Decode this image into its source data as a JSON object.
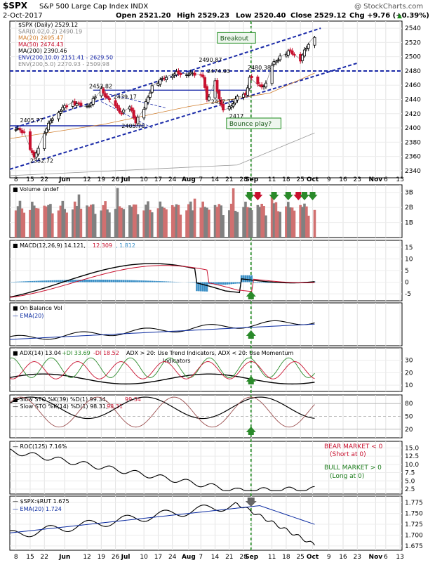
{
  "header": {
    "symbol": "$SPX",
    "name": "S&P 500 Large Cap Index INDX",
    "date": "2-Oct-2017",
    "open": "Open 2521.20",
    "high": "High 2529.23",
    "low": "Low 2520.40",
    "close": "Close 2529.12",
    "chg": "Chg +9.76 (+0.39%)",
    "chg_arrow": "▲",
    "watermark": "@ StockCharts.com"
  },
  "colors": {
    "up": "#000000",
    "down": "#c8102e",
    "ma20": "#d07e2e",
    "ma50": "#c8102e",
    "ma200": "#000000",
    "macd_hist": "#3a8fc6",
    "ema": "#0a2aa0",
    "env_blue": "#1a2aa8",
    "sig_green": "#2a8a2a",
    "sig_red": "#c8102e",
    "vol_up": "#808080",
    "vol_down": "#d07070"
  },
  "chart_data": [
    {
      "type": "line",
      "title": "$SPX (Daily) 2529.12",
      "legend": [
        {
          "label": "$SPX (Daily) 2529.12",
          "color": "#000000"
        },
        {
          "label": "SAR(0.02,0.2) 2490.19",
          "color": "#888888"
        },
        {
          "label": "MA(20) 2495.47",
          "color": "#d07e2e"
        },
        {
          "label": "MA(50) 2474.43",
          "color": "#c8102e"
        },
        {
          "label": "MA(200) 2390.46",
          "color": "#000000"
        },
        {
          "label": "ENV(200,10.0) 2151.41 - 2629.50",
          "color": "#1a2aa8"
        },
        {
          "label": "ENV(200,5.0) 2270.93 - 2509.98",
          "color": "#888888"
        }
      ],
      "ylim": [
        2330,
        2550
      ],
      "yticks": [
        "2540",
        "2520",
        "2500",
        "2480",
        "2460",
        "2440",
        "2420",
        "2400",
        "2380",
        "2360",
        "2340"
      ],
      "xticks": [
        "8",
        "15",
        "22",
        "Jun",
        "12",
        "19",
        "26",
        "Jul",
        "10",
        "17",
        "24",
        "Aug",
        "7",
        "14",
        "21",
        "28",
        "Sep",
        "11",
        "18",
        "25",
        "Oct",
        "9",
        "16",
        "23",
        "Nov",
        "6",
        "13"
      ],
      "price_labels": [
        "2490.87",
        "2474.93",
        "2453.82",
        "2439.17",
        "2405.77",
        "2405.70",
        "2352.72",
        "2427.75",
        "2417",
        "2480.38"
      ],
      "annotations": [
        "Breakout",
        "Bounce play?"
      ],
      "levels": [
        2480,
        2453,
        2403
      ],
      "series": [
        {
          "name": "$SPX",
          "x": [
            "May 8",
            "May 12",
            "May 17",
            "May 18",
            "May 22",
            "May 26",
            "Jun 1",
            "Jun 5",
            "Jun 9",
            "Jun 12",
            "Jun 19",
            "Jun 23",
            "Jun 29",
            "Jul 3",
            "Jul 6",
            "Jul 10",
            "Jul 14",
            "Jul 21",
            "Jul 26",
            "Aug 1",
            "Aug 4",
            "Aug 8",
            "Aug 10",
            "Aug 14",
            "Aug 17",
            "Aug 18",
            "Aug 21",
            "Aug 25",
            "Aug 29",
            "Aug 31",
            "Sep 5",
            "Sep 8",
            "Sep 11",
            "Sep 15",
            "Sep 20",
            "Sep 25",
            "Sep 29",
            "Oct 2"
          ],
          "values": [
            2399,
            2394,
            2357,
            2366,
            2394,
            2415,
            2430,
            2436,
            2432,
            2429,
            2453,
            2438,
            2421,
            2429,
            2409,
            2427,
            2459,
            2472,
            2477,
            2476,
            2476,
            2474,
            2438,
            2465,
            2430,
            2425,
            2428,
            2443,
            2446,
            2471,
            2458,
            2461,
            2488,
            2500,
            2508,
            2496,
            2519,
            2529
          ]
        }
      ]
    },
    {
      "type": "bar",
      "title": "Volume undef",
      "yticks": [
        "3B",
        "2B",
        "1B"
      ],
      "ylim": [
        0,
        3.5
      ]
    },
    {
      "type": "line",
      "title": "MACD(12,26,9) 14.121, 12.309, 1.812",
      "legend": [
        "MACD(12,26,9) 14.121",
        "12.309",
        "1.812"
      ],
      "yticks": [
        "15",
        "10",
        "5",
        "0",
        "-5"
      ],
      "ylim": [
        -8,
        18
      ]
    },
    {
      "type": "line",
      "title": "On Balance Vol",
      "legend": [
        "On Balance Vol",
        "EMA(20)"
      ]
    },
    {
      "type": "line",
      "title": "ADX(14) 13.04 +DI 33.69 -DI 18.52",
      "legend": [
        "ADX(14) 13.04",
        "+DI 33.69",
        "-DI 18.52"
      ],
      "note": "ADX > 20: Use Trend Indicators, ADX < 20: Use Momentum Indicators",
      "yticks": [
        "30",
        "20",
        "10"
      ],
      "ylim": [
        5,
        40
      ]
    },
    {
      "type": "line",
      "title": "Slow STO %K(39) %D(1) 99.34, 99.34",
      "legend": [
        "Slow STO %K(39) %D(1) 99.34, 99.34",
        "Slow STO %K(14) %D(1) 98.31, 98.31"
      ],
      "yticks": [
        "80",
        "50",
        "20"
      ],
      "ylim": [
        0,
        100
      ]
    },
    {
      "type": "line",
      "title": "ROC(125) 7.16%",
      "notes": [
        "BEAR MARKET < 0",
        "(Short at 0)",
        "BULL MARKET > 0",
        "(Long at 0)"
      ],
      "yticks": [
        "15.0",
        "12.5",
        "10.0",
        "7.5",
        "5.0",
        "2.5"
      ],
      "ylim": [
        1,
        17
      ]
    },
    {
      "type": "line",
      "title": "$SPX:$RUT 1.675",
      "legend": [
        "$SPX:$RUT 1.675",
        "EMA(20) 1.724"
      ],
      "yticks": [
        "1.775",
        "1.750",
        "1.725",
        "1.700",
        "1.675"
      ],
      "ylim": [
        1.665,
        1.79
      ]
    }
  ]
}
